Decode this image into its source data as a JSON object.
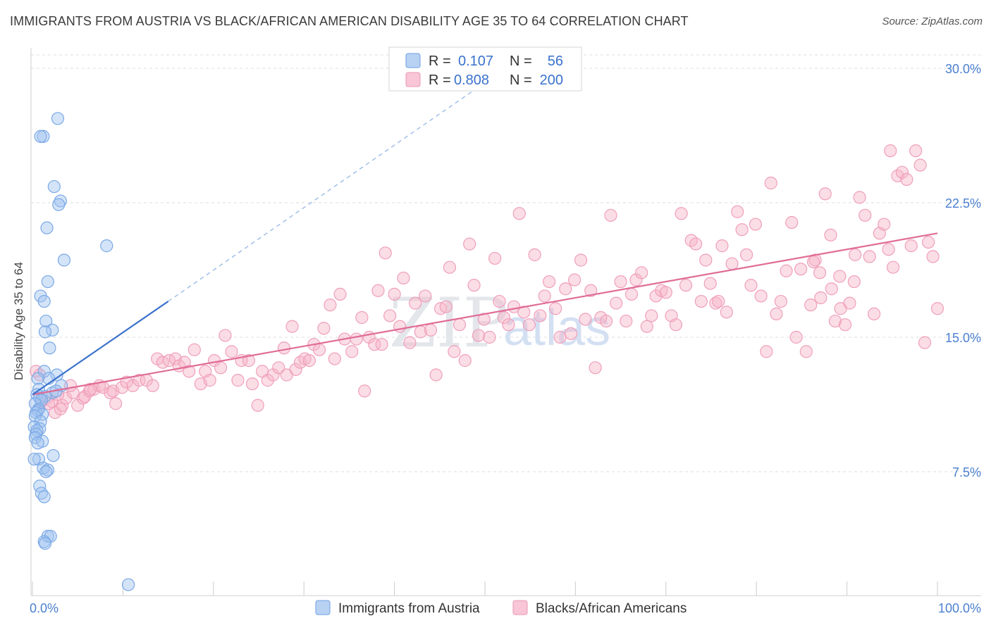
{
  "title": "IMMIGRANTS FROM AUSTRIA VS BLACK/AFRICAN AMERICAN DISABILITY AGE 35 TO 64 CORRELATION CHART",
  "source": "Source: ZipAtlas.com",
  "watermark": {
    "zip": "ZIP",
    "atlas": "atlas"
  },
  "legend": {
    "rows": [
      {
        "r_label": "R =",
        "r_value": "0.107",
        "n_label": "N =",
        "n_value": "56"
      },
      {
        "r_label": "R =",
        "r_value": "0.808",
        "n_label": "N =",
        "n_value": "200"
      }
    ]
  },
  "bottom_legend": [
    "Immigrants from Austria",
    "Blacks/African Americans"
  ],
  "colors": {
    "blue": "#3a72cc",
    "blue_fill": "rgba(159,195,240,0.45)",
    "blue_stroke": "#7aa8e6",
    "pink": "#e06c96",
    "pink_fill": "rgba(246,180,200,0.45)",
    "pink_stroke": "#ef9fbb",
    "grid": "#dddddd",
    "tick_text": "#4a7fd0"
  },
  "chart_data": {
    "type": "scatter",
    "title": "IMMIGRANTS FROM AUSTRIA VS BLACK/AFRICAN AMERICAN DISABILITY AGE 35 TO 64 CORRELATION CHART",
    "xlabel": "",
    "ylabel": "Disability Age 35 to 64",
    "xlim": [
      0,
      100
    ],
    "ylim": [
      0,
      31
    ],
    "x_tick_labels": [
      "0.0%",
      "100.0%"
    ],
    "y_ticks": [
      7.5,
      15.0,
      22.5,
      30.0
    ],
    "y_tick_labels": [
      "7.5%",
      "15.0%",
      "22.5%",
      "30.0%"
    ],
    "grid": true,
    "legend_position": "top-center",
    "series": [
      {
        "name": "Immigrants from Austria",
        "color": "#3a72cc",
        "trend": {
          "x": [
            0,
            15
          ],
          "y": [
            11.8,
            17.0
          ],
          "dashed_extension_to": [
            50,
            29.2
          ]
        },
        "points": [
          [
            2.8,
            27.2
          ],
          [
            1.2,
            26.2
          ],
          [
            0.9,
            26.2
          ],
          [
            2.4,
            23.4
          ],
          [
            3.1,
            22.6
          ],
          [
            2.9,
            22.4
          ],
          [
            1.6,
            21.1
          ],
          [
            8.2,
            20.1
          ],
          [
            3.5,
            19.3
          ],
          [
            1.7,
            18.1
          ],
          [
            0.9,
            17.3
          ],
          [
            1.3,
            17.0
          ],
          [
            1.5,
            15.9
          ],
          [
            2.2,
            15.4
          ],
          [
            1.4,
            15.3
          ],
          [
            1.9,
            14.4
          ],
          [
            1.3,
            13.1
          ],
          [
            2.7,
            12.9
          ],
          [
            1.8,
            12.7
          ],
          [
            0.6,
            12.7
          ],
          [
            3.2,
            12.3
          ],
          [
            0.7,
            12.1
          ],
          [
            2.2,
            11.9
          ],
          [
            2.6,
            12.0
          ],
          [
            1.4,
            11.7
          ],
          [
            0.5,
            11.8
          ],
          [
            0.8,
            11.6
          ],
          [
            1.0,
            11.5
          ],
          [
            0.3,
            11.3
          ],
          [
            0.7,
            11.0
          ],
          [
            0.6,
            10.9
          ],
          [
            0.4,
            10.8
          ],
          [
            1.1,
            10.7
          ],
          [
            0.3,
            10.6
          ],
          [
            0.9,
            10.3
          ],
          [
            0.2,
            10.0
          ],
          [
            0.8,
            9.9
          ],
          [
            0.5,
            9.8
          ],
          [
            0.4,
            9.6
          ],
          [
            0.3,
            9.4
          ],
          [
            1.1,
            9.2
          ],
          [
            0.6,
            9.1
          ],
          [
            2.3,
            8.4
          ],
          [
            0.7,
            8.2
          ],
          [
            0.2,
            8.2
          ],
          [
            1.2,
            7.7
          ],
          [
            1.7,
            7.6
          ],
          [
            1.5,
            7.5
          ],
          [
            0.8,
            6.7
          ],
          [
            1.0,
            6.3
          ],
          [
            1.3,
            6.1
          ],
          [
            1.7,
            3.9
          ],
          [
            2.0,
            3.9
          ],
          [
            1.3,
            3.6
          ],
          [
            1.4,
            3.5
          ],
          [
            10.6,
            1.2
          ]
        ]
      },
      {
        "name": "Blacks/African Americans",
        "color": "#e06c96",
        "trend": {
          "x": [
            0,
            100
          ],
          "y": [
            11.8,
            20.8
          ]
        },
        "points": [
          [
            0.4,
            13.1
          ],
          [
            0.8,
            12.9
          ],
          [
            1.6,
            11.6
          ],
          [
            1.0,
            11.4
          ],
          [
            2.2,
            11.4
          ],
          [
            2.5,
            10.8
          ],
          [
            3.3,
            11.2
          ],
          [
            3.7,
            11.6
          ],
          [
            4.5,
            11.9
          ],
          [
            5.0,
            11.2
          ],
          [
            5.6,
            11.6
          ],
          [
            5.8,
            11.7
          ],
          [
            6.3,
            12.0
          ],
          [
            6.8,
            12.1
          ],
          [
            7.4,
            12.3
          ],
          [
            7.8,
            12.2
          ],
          [
            8.6,
            11.9
          ],
          [
            8.9,
            12.0
          ],
          [
            9.2,
            11.3
          ],
          [
            9.9,
            12.2
          ],
          [
            10.4,
            12.5
          ],
          [
            11.1,
            12.3
          ],
          [
            11.8,
            12.6
          ],
          [
            12.6,
            12.6
          ],
          [
            13.3,
            12.3
          ],
          [
            4.2,
            12.3
          ],
          [
            6.4,
            12.1
          ],
          [
            2.8,
            11.8
          ],
          [
            1.8,
            11.3
          ],
          [
            3.1,
            11.0
          ],
          [
            13.8,
            13.8
          ],
          [
            14.4,
            13.6
          ],
          [
            15.1,
            13.7
          ],
          [
            15.8,
            13.8
          ],
          [
            16.2,
            13.4
          ],
          [
            16.8,
            13.6
          ],
          [
            17.3,
            13.1
          ],
          [
            17.9,
            14.3
          ],
          [
            18.6,
            12.4
          ],
          [
            19.1,
            13.1
          ],
          [
            19.6,
            12.6
          ],
          [
            20.1,
            13.7
          ],
          [
            20.8,
            13.3
          ],
          [
            21.3,
            15.1
          ],
          [
            22.0,
            14.2
          ],
          [
            22.7,
            12.6
          ],
          [
            23.1,
            13.7
          ],
          [
            23.9,
            13.7
          ],
          [
            24.3,
            12.4
          ],
          [
            24.9,
            11.2
          ],
          [
            25.4,
            13.1
          ],
          [
            26.0,
            12.6
          ],
          [
            26.6,
            12.9
          ],
          [
            27.2,
            13.3
          ],
          [
            27.8,
            14.4
          ],
          [
            28.1,
            12.9
          ],
          [
            28.7,
            15.6
          ],
          [
            29.1,
            13.2
          ],
          [
            29.6,
            13.6
          ],
          [
            30.1,
            13.8
          ],
          [
            30.6,
            13.7
          ],
          [
            31.1,
            14.6
          ],
          [
            31.7,
            14.3
          ],
          [
            32.2,
            15.5
          ],
          [
            32.9,
            16.8
          ],
          [
            33.4,
            13.8
          ],
          [
            34.0,
            17.4
          ],
          [
            34.5,
            14.9
          ],
          [
            35.3,
            14.2
          ],
          [
            35.8,
            14.9
          ],
          [
            36.4,
            16.1
          ],
          [
            36.7,
            12.0
          ],
          [
            37.2,
            15.0
          ],
          [
            37.8,
            14.6
          ],
          [
            38.2,
            17.6
          ],
          [
            38.6,
            14.6
          ],
          [
            39.0,
            19.7
          ],
          [
            39.5,
            16.2
          ],
          [
            40.0,
            17.4
          ],
          [
            40.6,
            15.6
          ],
          [
            41.0,
            18.3
          ],
          [
            41.7,
            14.7
          ],
          [
            42.3,
            16.9
          ],
          [
            42.9,
            15.3
          ],
          [
            43.4,
            17.3
          ],
          [
            44.0,
            15.4
          ],
          [
            44.6,
            12.9
          ],
          [
            45.1,
            16.6
          ],
          [
            45.7,
            16.7
          ],
          [
            46.1,
            18.9
          ],
          [
            46.6,
            14.2
          ],
          [
            47.2,
            15.7
          ],
          [
            47.8,
            13.7
          ],
          [
            48.3,
            20.2
          ],
          [
            48.8,
            17.9
          ],
          [
            49.3,
            15.1
          ],
          [
            49.9,
            16.0
          ],
          [
            50.5,
            15.0
          ],
          [
            51.1,
            19.4
          ],
          [
            51.6,
            17.0
          ],
          [
            52.1,
            16.1
          ],
          [
            52.6,
            15.7
          ],
          [
            53.2,
            16.7
          ],
          [
            53.8,
            21.9
          ],
          [
            54.3,
            16.4
          ],
          [
            54.9,
            15.7
          ],
          [
            55.5,
            19.6
          ],
          [
            56.1,
            16.2
          ],
          [
            56.6,
            17.3
          ],
          [
            57.1,
            18.1
          ],
          [
            57.8,
            16.6
          ],
          [
            58.3,
            15.0
          ],
          [
            58.9,
            17.7
          ],
          [
            59.5,
            15.2
          ],
          [
            59.9,
            18.2
          ],
          [
            60.6,
            19.3
          ],
          [
            61.1,
            16.0
          ],
          [
            61.7,
            17.6
          ],
          [
            62.2,
            13.3
          ],
          [
            62.8,
            16.1
          ],
          [
            63.4,
            15.9
          ],
          [
            63.9,
            21.8
          ],
          [
            64.5,
            16.9
          ],
          [
            65.0,
            18.1
          ],
          [
            65.6,
            15.9
          ],
          [
            66.2,
            17.4
          ],
          [
            66.7,
            18.2
          ],
          [
            67.3,
            18.6
          ],
          [
            67.9,
            15.6
          ],
          [
            68.4,
            16.2
          ],
          [
            68.9,
            17.3
          ],
          [
            69.5,
            17.6
          ],
          [
            70.0,
            17.5
          ],
          [
            70.6,
            16.2
          ],
          [
            71.1,
            15.7
          ],
          [
            71.7,
            21.9
          ],
          [
            72.2,
            17.9
          ],
          [
            72.8,
            20.4
          ],
          [
            73.3,
            20.2
          ],
          [
            73.9,
            17.0
          ],
          [
            74.4,
            19.3
          ],
          [
            74.9,
            18.0
          ],
          [
            75.5,
            16.9
          ],
          [
            75.8,
            17.0
          ],
          [
            76.2,
            20.1
          ],
          [
            76.7,
            16.4
          ],
          [
            77.3,
            19.1
          ],
          [
            77.9,
            22.0
          ],
          [
            78.4,
            21.0
          ],
          [
            78.9,
            19.6
          ],
          [
            79.4,
            17.9
          ],
          [
            79.9,
            21.3
          ],
          [
            80.5,
            17.3
          ],
          [
            81.1,
            14.2
          ],
          [
            81.6,
            23.6
          ],
          [
            82.2,
            16.3
          ],
          [
            82.7,
            17.0
          ],
          [
            83.3,
            18.7
          ],
          [
            83.9,
            21.4
          ],
          [
            84.4,
            15.0
          ],
          [
            84.9,
            18.8
          ],
          [
            85.5,
            14.2
          ],
          [
            86.0,
            16.8
          ],
          [
            86.5,
            19.3
          ],
          [
            87.1,
            17.2
          ],
          [
            87.6,
            23.0
          ],
          [
            88.2,
            20.7
          ],
          [
            88.7,
            15.9
          ],
          [
            89.3,
            16.6
          ],
          [
            89.8,
            15.7
          ],
          [
            90.3,
            16.9
          ],
          [
            90.9,
            19.6
          ],
          [
            91.4,
            22.8
          ],
          [
            92.0,
            21.8
          ],
          [
            92.5,
            19.5
          ],
          [
            93.0,
            16.3
          ],
          [
            93.6,
            20.8
          ],
          [
            94.1,
            21.3
          ],
          [
            94.6,
            19.9
          ],
          [
            95.1,
            18.9
          ],
          [
            95.6,
            24.0
          ],
          [
            96.1,
            24.2
          ],
          [
            96.6,
            23.8
          ],
          [
            97.1,
            20.1
          ],
          [
            97.6,
            25.4
          ],
          [
            98.1,
            24.6
          ],
          [
            98.6,
            14.7
          ],
          [
            99.0,
            20.3
          ],
          [
            99.5,
            19.5
          ],
          [
            100.0,
            16.6
          ],
          [
            94.8,
            25.4
          ],
          [
            89.2,
            18.4
          ],
          [
            88.3,
            17.7
          ],
          [
            90.8,
            18.1
          ],
          [
            87.0,
            18.6
          ],
          [
            86.3,
            19.2
          ]
        ]
      }
    ]
  }
}
